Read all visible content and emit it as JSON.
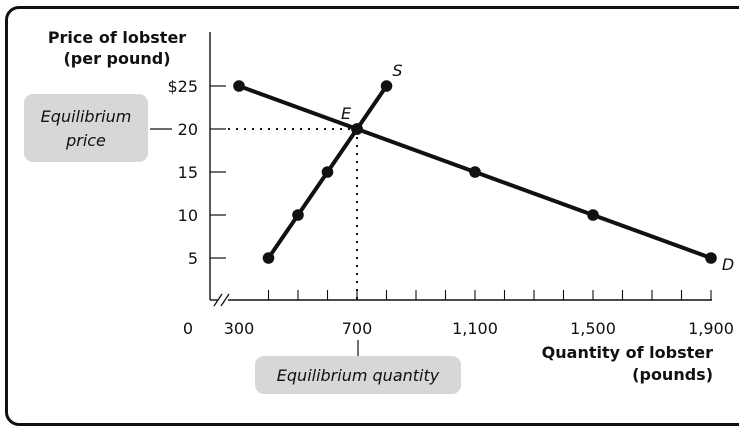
{
  "chart_data": {
    "type": "line",
    "ylabel_line1": "Price of lobster",
    "ylabel_line2": "(per pound)",
    "xlabel_line1": "Quantity of lobster",
    "xlabel_line2": "(pounds)",
    "y_ticks": [
      {
        "value": 25,
        "label": "$25"
      },
      {
        "value": 20,
        "label": "20"
      },
      {
        "value": 15,
        "label": "15"
      },
      {
        "value": 10,
        "label": "10"
      },
      {
        "value": 5,
        "label": "5"
      }
    ],
    "x_ticks": [
      {
        "value": 300,
        "label": "300"
      },
      {
        "value": 700,
        "label": "700"
      },
      {
        "value": 1100,
        "label": "1,100"
      },
      {
        "value": 1500,
        "label": "1,500"
      },
      {
        "value": 1900,
        "label": "1,900"
      }
    ],
    "origin_label": "0",
    "xlim": [
      300,
      1900
    ],
    "ylim": [
      0,
      25
    ],
    "series": [
      {
        "name": "S",
        "x": [
          400,
          500,
          600,
          700,
          800
        ],
        "y": [
          5,
          10,
          15,
          20,
          25
        ]
      },
      {
        "name": "D",
        "x": [
          300,
          700,
          1100,
          1500,
          1900
        ],
        "y": [
          25,
          20,
          15,
          10,
          5
        ]
      }
    ],
    "equilibrium": {
      "label": "E",
      "x": 700,
      "y": 20
    },
    "callouts": {
      "price_line1": "Equilibrium",
      "price_line2": "price",
      "quantity": "Equilibrium quantity"
    }
  }
}
